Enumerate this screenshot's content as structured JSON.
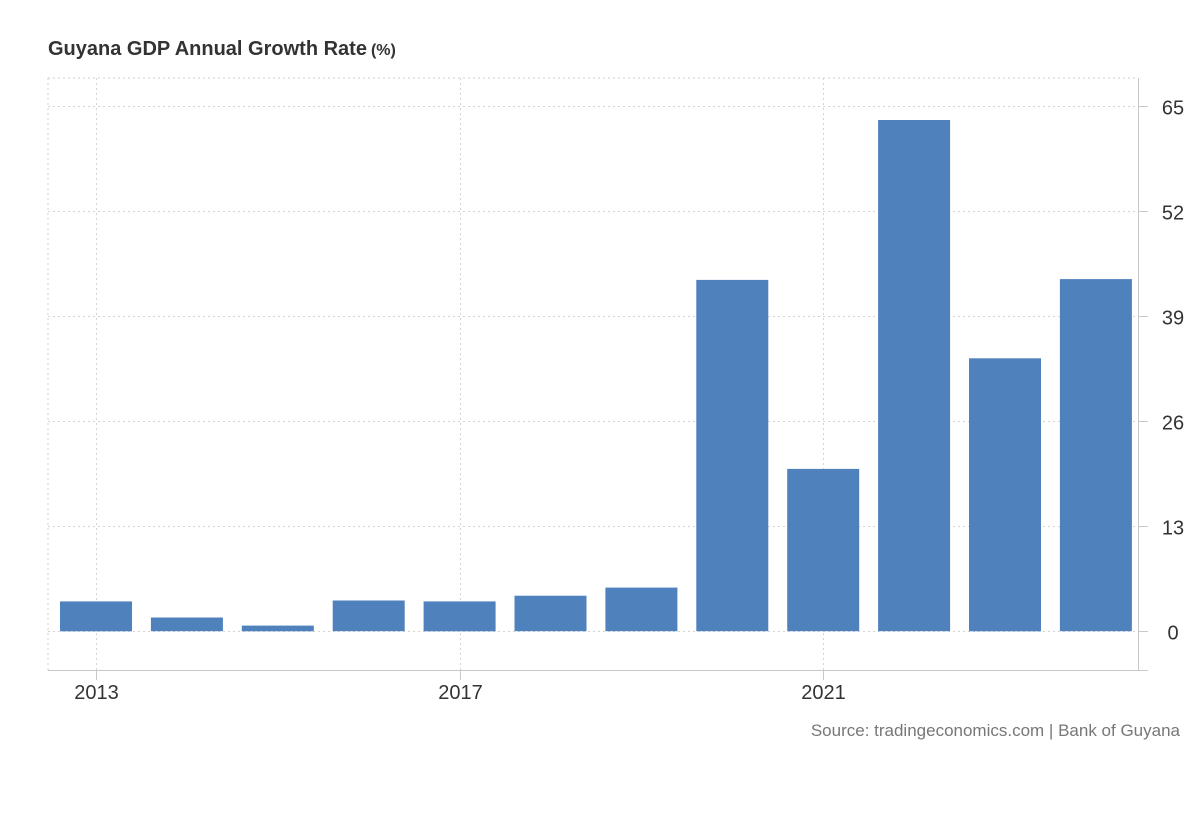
{
  "chart_data": {
    "type": "bar",
    "title": "Guyana GDP Annual Growth Rate",
    "unit": "(%)",
    "categories": [
      "2013",
      "2014",
      "2015",
      "2016",
      "2017",
      "2018",
      "2019",
      "2020",
      "2021",
      "2022",
      "2023",
      "2024"
    ],
    "x_tick_labels": [
      "2013",
      "2017",
      "2021"
    ],
    "values": [
      3.7,
      1.7,
      0.7,
      3.8,
      3.7,
      4.4,
      5.4,
      43.5,
      20.1,
      63.3,
      33.8,
      43.6
    ],
    "y_ticks": [
      0,
      13,
      26,
      39,
      52,
      65
    ],
    "ylim": [
      -4.8,
      68.5
    ],
    "y_axis_side": "right",
    "grid": true,
    "bar_color": "#4f81bd",
    "xlabel": "",
    "ylabel": ""
  },
  "source": "Source: tradingeconomics.com | Bank of Guyana"
}
